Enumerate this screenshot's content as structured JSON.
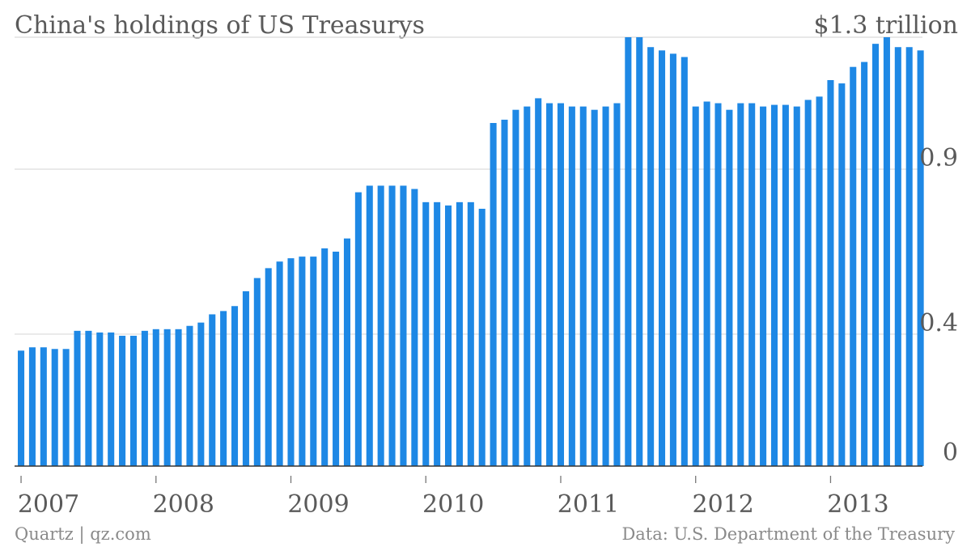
{
  "colors": {
    "bar": "#1e88e5",
    "text": "#5a5a5a",
    "footer": "#8a8a8a",
    "grid": "#d9d9d9"
  },
  "chart_data": {
    "type": "bar",
    "title": "China's holdings of US Treasurys",
    "unit_label": "$1.3 trillion",
    "xlabel": "",
    "ylabel": "",
    "ylim": [
      0,
      1.3
    ],
    "yticks": [
      {
        "value": 1.3,
        "label": "$1.3 trillion"
      },
      {
        "value": 0.9,
        "label": "0.9"
      },
      {
        "value": 0.4,
        "label": "0.4"
      },
      {
        "value": 0,
        "label": "0"
      }
    ],
    "x_start": "2007-01",
    "x_tick_labels": [
      "2007",
      "2008",
      "2009",
      "2010",
      "2011",
      "2012",
      "2013"
    ],
    "grid": true,
    "source_left": "Quartz | qz.com",
    "source_right": "Data: U.S. Department of the Treasury",
    "values": [
      0.35,
      0.36,
      0.36,
      0.355,
      0.355,
      0.41,
      0.41,
      0.405,
      0.405,
      0.395,
      0.395,
      0.41,
      0.415,
      0.415,
      0.415,
      0.425,
      0.435,
      0.46,
      0.47,
      0.485,
      0.53,
      0.57,
      0.6,
      0.62,
      0.63,
      0.635,
      0.635,
      0.66,
      0.65,
      0.69,
      0.83,
      0.85,
      0.85,
      0.85,
      0.85,
      0.84,
      0.8,
      0.8,
      0.79,
      0.8,
      0.8,
      0.78,
      1.04,
      1.05,
      1.08,
      1.09,
      1.115,
      1.1,
      1.1,
      1.09,
      1.09,
      1.08,
      1.09,
      1.1,
      1.3,
      1.3,
      1.27,
      1.26,
      1.25,
      1.24,
      1.09,
      1.105,
      1.1,
      1.08,
      1.1,
      1.1,
      1.09,
      1.095,
      1.095,
      1.09,
      1.11,
      1.12,
      1.17,
      1.16,
      1.21,
      1.225,
      1.28,
      1.3,
      1.27,
      1.27,
      1.26
    ]
  }
}
